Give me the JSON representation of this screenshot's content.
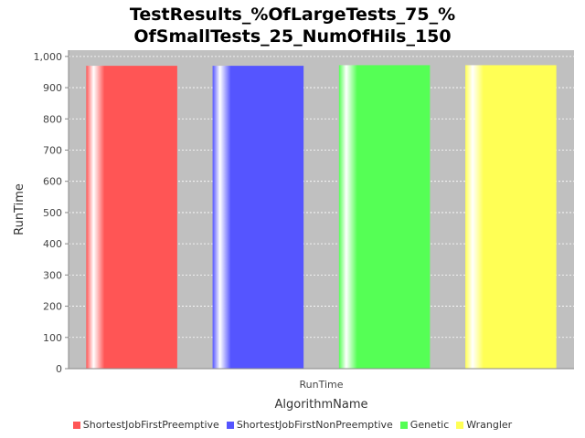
{
  "chart_data": {
    "type": "bar",
    "title_lines": [
      "TestResults_%OfLargeTests_75_%",
      "OfSmallTests_25_NumOfHils_150"
    ],
    "xlabel": "AlgorithmName",
    "ylabel": "RunTime",
    "categories": [
      "RunTime"
    ],
    "series": [
      {
        "name": "ShortestJobFirstPreemptive",
        "color": "#ff5555",
        "values": [
          970
        ]
      },
      {
        "name": "ShortestJobFirstNonPreemptive",
        "color": "#5555ff",
        "values": [
          970
        ]
      },
      {
        "name": "Genetic",
        "color": "#55ff55",
        "values": [
          972
        ]
      },
      {
        "name": "Wrangler",
        "color": "#ffff55",
        "values": [
          972
        ]
      }
    ],
    "ylim": [
      0,
      1020
    ],
    "yticks": [
      {
        "value": 0,
        "label": "0"
      },
      {
        "value": 100,
        "label": "100"
      },
      {
        "value": 200,
        "label": "200"
      },
      {
        "value": 300,
        "label": "300"
      },
      {
        "value": 400,
        "label": "400"
      },
      {
        "value": 500,
        "label": "500"
      },
      {
        "value": 600,
        "label": "600"
      },
      {
        "value": 700,
        "label": "700"
      },
      {
        "value": 800,
        "label": "800"
      },
      {
        "value": 900,
        "label": "900"
      },
      {
        "value": 1000,
        "label": "1,000"
      }
    ],
    "grid": true,
    "legend_position": "bottom",
    "plot_background": "#c0c0c0"
  }
}
